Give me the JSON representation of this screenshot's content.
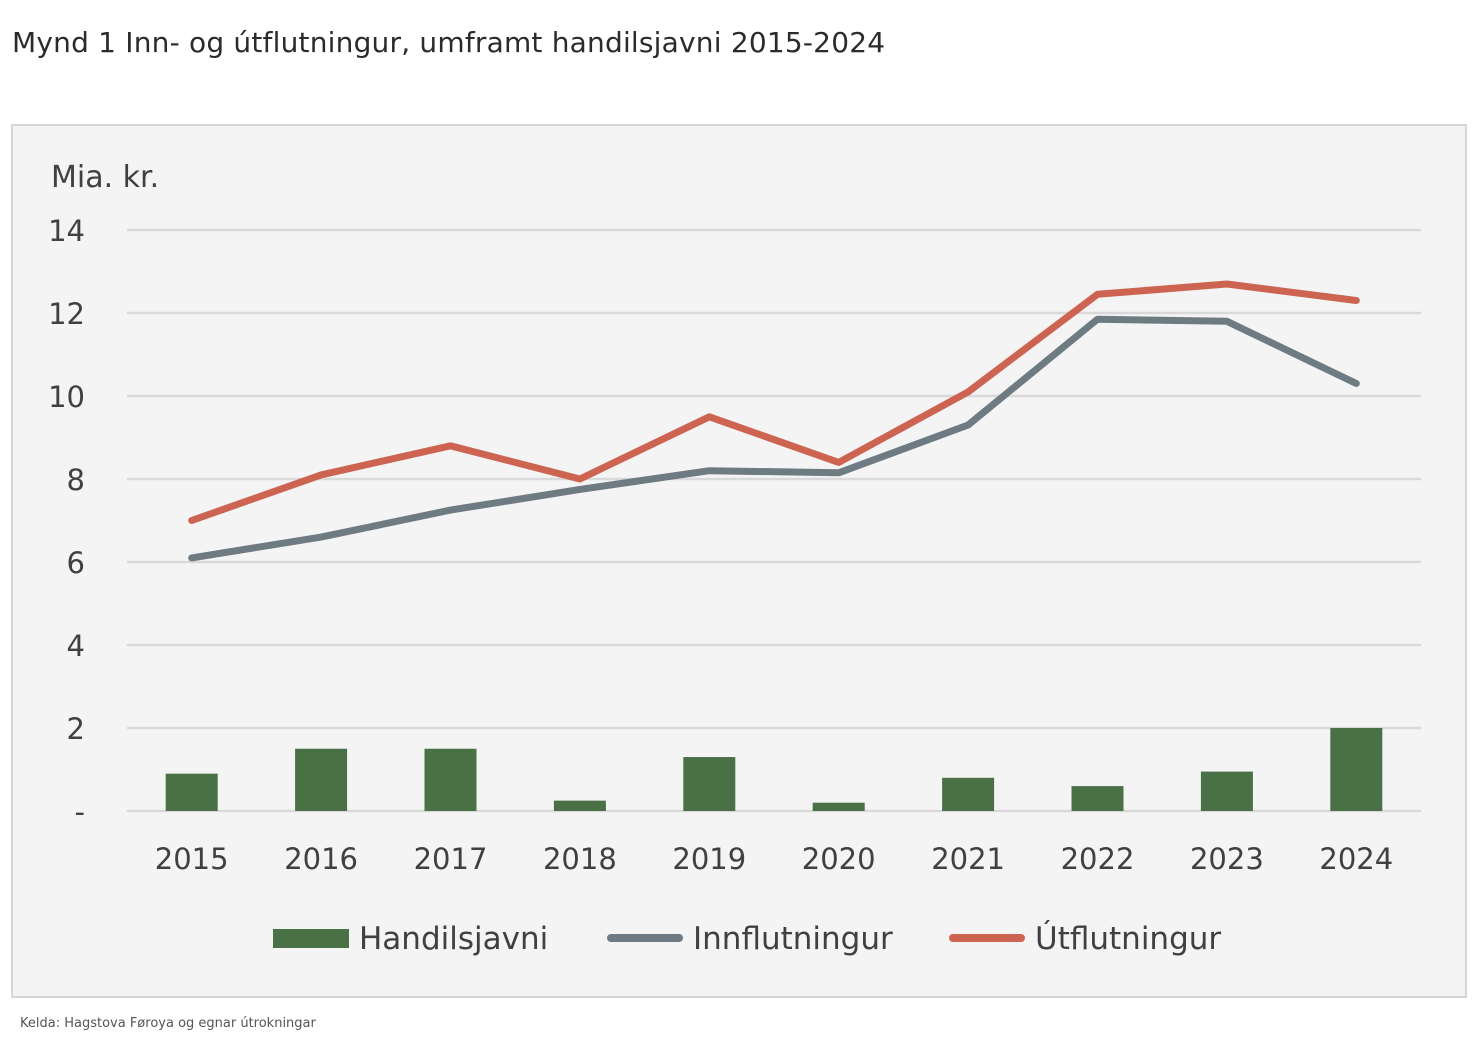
{
  "page": {
    "title": "Mynd 1 Inn- og útflutningur, umframt handilsjavni 2015-2024",
    "source": "Kelda: Hagstova Føroya og egnar útrokningar"
  },
  "chart_data": {
    "type": "bar",
    "title": "",
    "ylabel": "Mia. kr.",
    "xlabel": "",
    "categories": [
      "2015",
      "2016",
      "2017",
      "2018",
      "2019",
      "2020",
      "2021",
      "2022",
      "2023",
      "2024"
    ],
    "ylim": [
      0,
      14
    ],
    "yticks": [
      0,
      2,
      4,
      6,
      8,
      10,
      12,
      14
    ],
    "ytick_labels": [
      "-",
      "2",
      "4",
      "6",
      "8",
      "10",
      "12",
      "14"
    ],
    "grid": true,
    "legend_position": "bottom",
    "series": [
      {
        "name": "Handilsjavni",
        "type": "bar",
        "color": "#4a7146",
        "values": [
          0.9,
          1.5,
          1.5,
          0.25,
          1.3,
          0.2,
          0.8,
          0.6,
          0.95,
          2.0
        ]
      },
      {
        "name": "Innflutningur",
        "type": "line",
        "color": "#6e7b82",
        "values": [
          6.1,
          6.6,
          7.25,
          7.75,
          8.2,
          8.15,
          9.3,
          11.85,
          11.8,
          10.3
        ]
      },
      {
        "name": "Útflutningur",
        "type": "line",
        "color": "#cd6451",
        "values": [
          7.0,
          8.1,
          8.8,
          8.0,
          9.5,
          8.4,
          10.1,
          12.45,
          12.7,
          12.3
        ]
      }
    ]
  }
}
